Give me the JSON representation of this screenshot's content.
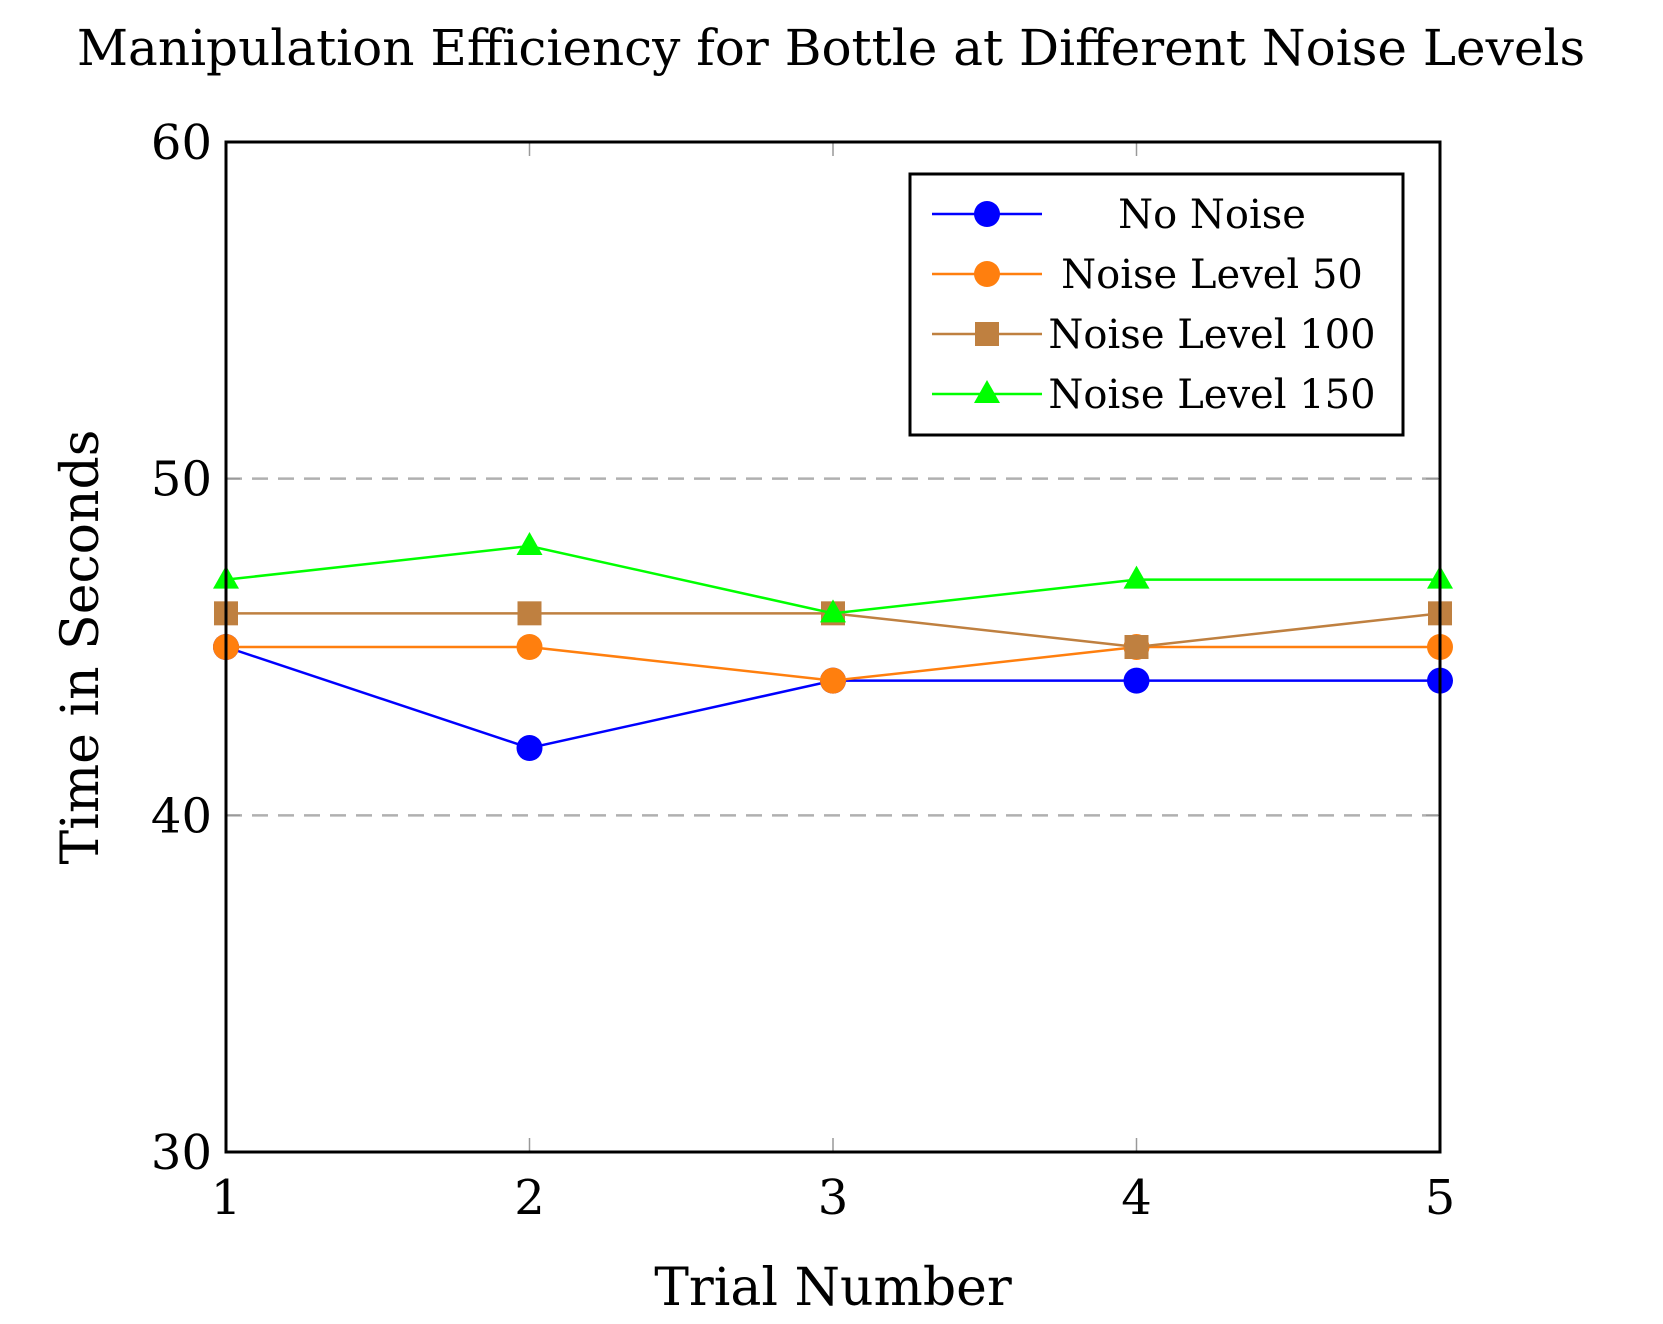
{
  "chart_data": {
    "type": "line",
    "title": "Manipulation Efficiency for Bottle at Different Noise Levels",
    "xlabel": "Trial Number",
    "ylabel": "Time in Seconds",
    "x": [
      1,
      2,
      3,
      4,
      5
    ],
    "xticks": [
      "1",
      "2",
      "3",
      "4",
      "5"
    ],
    "yticks": [
      "30",
      "40",
      "50",
      "60"
    ],
    "ytick_values": [
      30,
      40,
      50,
      60
    ],
    "xlim": [
      1,
      5
    ],
    "ylim": [
      30,
      60
    ],
    "grid": "horizontal dashed",
    "legend_position": "top-right",
    "series": [
      {
        "name": "No Noise",
        "values": [
          45,
          42,
          44,
          44,
          44
        ],
        "color": "#0000ff",
        "marker": "circle"
      },
      {
        "name": "Noise Level 50",
        "values": [
          45,
          45,
          44,
          45,
          45
        ],
        "color": "#ff7f0e",
        "marker": "circle"
      },
      {
        "name": "Noise Level 100",
        "values": [
          46,
          46,
          46,
          45,
          46
        ],
        "color": "#bf8040",
        "marker": "square"
      },
      {
        "name": "Noise Level 150",
        "values": [
          47,
          48,
          46,
          47,
          47
        ],
        "color": "#00ff00",
        "marker": "triangle"
      }
    ]
  }
}
